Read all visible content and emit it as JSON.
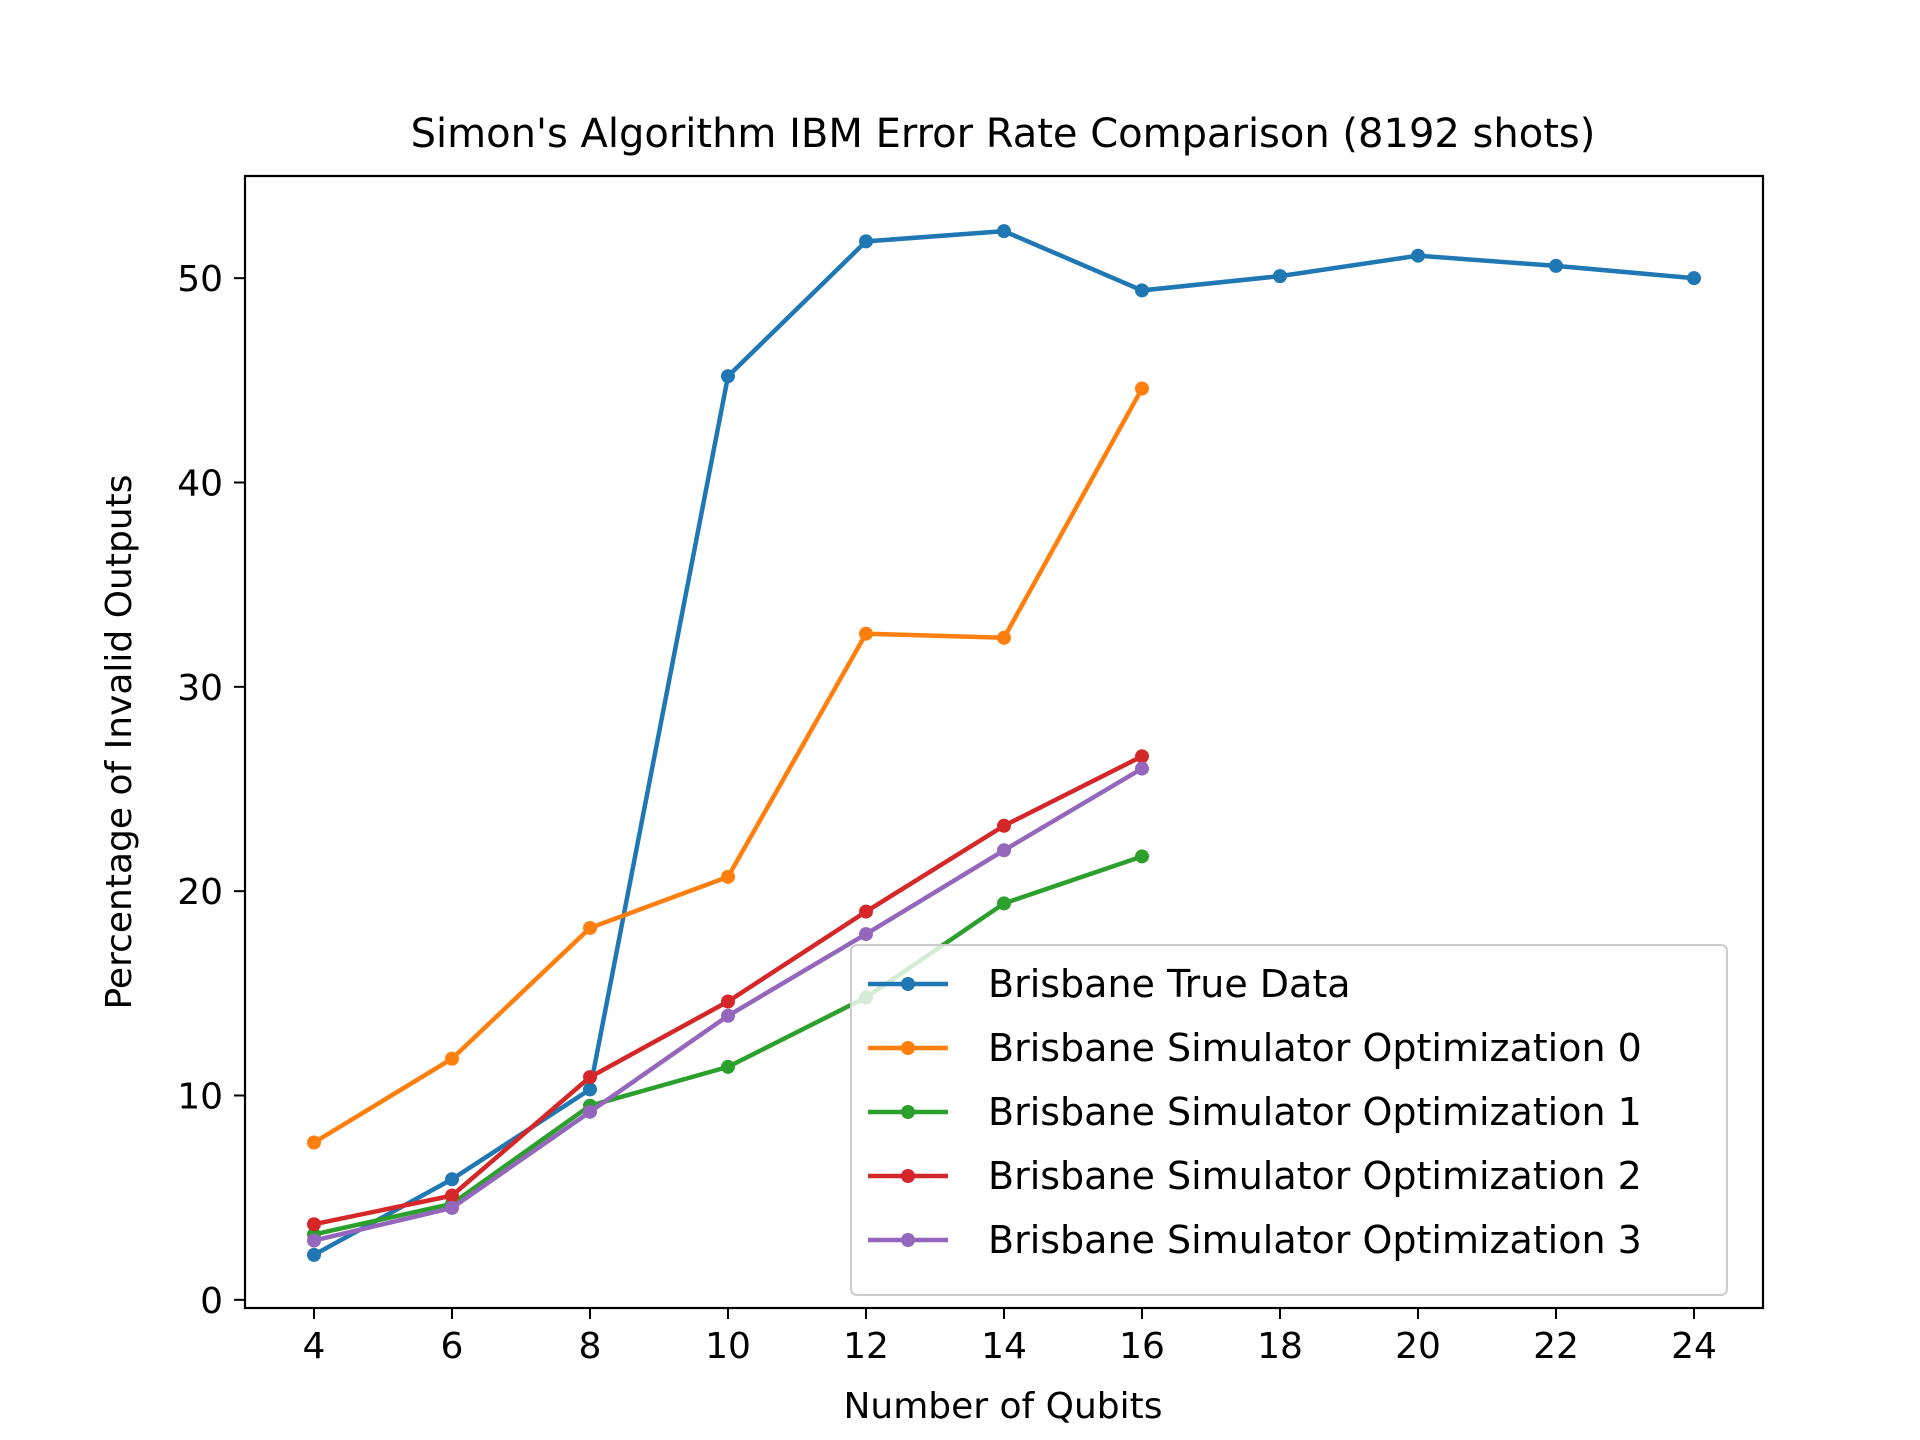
{
  "chart_data": {
    "type": "line",
    "title": "Simon's Algorithm IBM Error Rate Comparison (8192 shots)",
    "xlabel": "Number of Qubits",
    "ylabel": "Percentage of Invalid Outputs",
    "xlim": [
      3,
      25
    ],
    "ylim": [
      -0.4,
      55
    ],
    "xticks": [
      4,
      6,
      8,
      10,
      12,
      14,
      16,
      18,
      20,
      22,
      24
    ],
    "yticks": [
      0,
      10,
      20,
      30,
      40,
      50
    ],
    "grid": false,
    "legend_position": "lower right",
    "series": [
      {
        "name": "Brisbane True Data",
        "color": "#1f77b4",
        "x": [
          4,
          6,
          8,
          10,
          12,
          14,
          16,
          18,
          20,
          22,
          24
        ],
        "y": [
          2.2,
          5.9,
          10.3,
          45.2,
          51.8,
          52.3,
          49.4,
          50.1,
          51.1,
          50.6,
          50.0
        ]
      },
      {
        "name": "Brisbane Simulator Optimization 0",
        "color": "#ff7f0e",
        "x": [
          4,
          6,
          8,
          10,
          12,
          14,
          16
        ],
        "y": [
          7.7,
          11.8,
          18.2,
          20.7,
          32.6,
          32.4,
          44.6
        ]
      },
      {
        "name": "Brisbane Simulator Optimization 1",
        "color": "#2ca02c",
        "x": [
          4,
          6,
          8,
          10,
          12,
          14,
          16
        ],
        "y": [
          3.2,
          4.7,
          9.5,
          11.4,
          14.8,
          19.4,
          21.7
        ]
      },
      {
        "name": "Brisbane Simulator Optimization 2",
        "color": "#d62728",
        "x": [
          4,
          6,
          8,
          10,
          12,
          14,
          16
        ],
        "y": [
          3.7,
          5.1,
          10.9,
          14.6,
          19.0,
          23.2,
          26.6
        ]
      },
      {
        "name": "Brisbane Simulator Optimization 3",
        "color": "#9467bd",
        "x": [
          4,
          6,
          8,
          10,
          12,
          14,
          16
        ],
        "y": [
          2.9,
          4.5,
          9.2,
          13.9,
          17.9,
          22.0,
          26.0
        ]
      }
    ]
  }
}
